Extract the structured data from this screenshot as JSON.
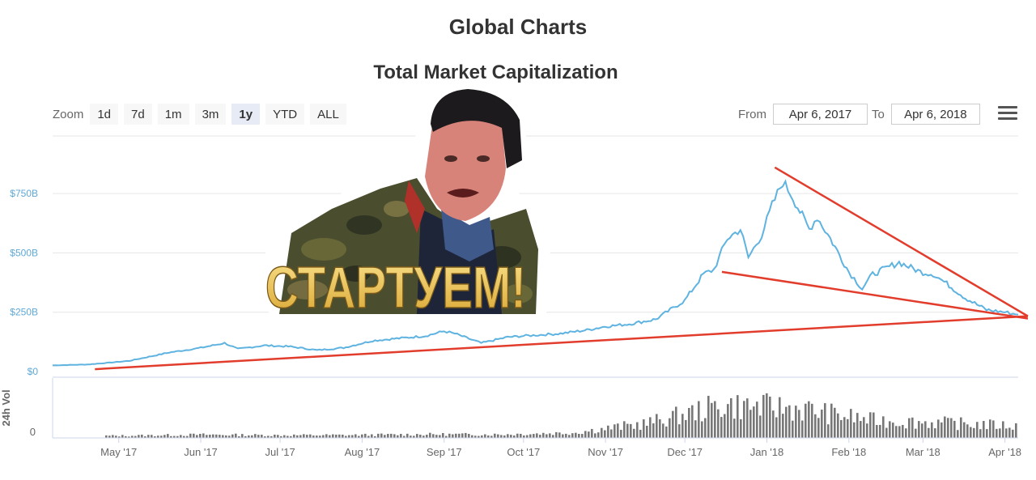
{
  "page": {
    "title": "Global Charts"
  },
  "toolbar": {
    "zoom_label": "Zoom",
    "zoom_buttons": [
      "1d",
      "7d",
      "1m",
      "3m",
      "1y",
      "YTD",
      "ALL"
    ],
    "active_zoom": "1y",
    "from_label": "From",
    "from_value": "Apr 6, 2017",
    "to_label": "To",
    "to_value": "Apr 6, 2018",
    "menu_icon": "hamburger-menu-icon"
  },
  "sticker": {
    "caption": "СТАРТУЕМ!",
    "caption_colors": [
      "#f8e08a",
      "#d9a531"
    ]
  },
  "chart_data": {
    "type": "line",
    "title": "Total Market Capitalization",
    "x_tick_labels": [
      "May '17",
      "Jun '17",
      "Jul '17",
      "Aug '17",
      "Sep '17",
      "Oct '17",
      "Nov '17",
      "Dec '17",
      "Jan '18",
      "Feb '18",
      "Mar '18",
      "Apr '18"
    ],
    "y_tick_labels": [
      "$0",
      "$250B",
      "$500B",
      "$750B"
    ],
    "y_ticks": [
      0,
      250,
      500,
      750
    ],
    "ylim": [
      0,
      850
    ],
    "line_color": "#5fb3e0",
    "series": [
      {
        "unit": "billion USD",
        "x": [
          "2017-04-06",
          "2017-04-20",
          "2017-05-05",
          "2017-05-20",
          "2017-06-01",
          "2017-06-10",
          "2017-06-15",
          "2017-06-25",
          "2017-07-05",
          "2017-07-15",
          "2017-07-25",
          "2017-08-05",
          "2017-08-15",
          "2017-08-25",
          "2017-09-01",
          "2017-09-05",
          "2017-09-15",
          "2017-09-25",
          "2017-10-01",
          "2017-10-15",
          "2017-10-25",
          "2017-11-01",
          "2017-11-10",
          "2017-11-20",
          "2017-12-01",
          "2017-12-08",
          "2017-12-12",
          "2017-12-17",
          "2017-12-22",
          "2017-12-25",
          "2017-12-30",
          "2018-01-03",
          "2018-01-07",
          "2018-01-10",
          "2018-01-17",
          "2018-01-20",
          "2018-01-25",
          "2018-02-01",
          "2018-02-06",
          "2018-02-10",
          "2018-02-20",
          "2018-02-28",
          "2018-03-05",
          "2018-03-10",
          "2018-03-17",
          "2018-03-25",
          "2018-04-01",
          "2018-04-06"
        ],
        "y": [
          26,
          30,
          45,
          80,
          100,
          120,
          95,
          110,
          105,
          90,
          100,
          130,
          140,
          150,
          170,
          160,
          120,
          145,
          150,
          160,
          175,
          190,
          200,
          220,
          300,
          410,
          430,
          560,
          600,
          480,
          575,
          700,
          800,
          750,
          600,
          650,
          560,
          420,
          350,
          410,
          460,
          420,
          410,
          370,
          310,
          260,
          250,
          240
        ]
      }
    ],
    "trend_lines": [
      {
        "color": "#e23c2c",
        "x": [
          "2017-04-22",
          "2018-04-06"
        ],
        "y": [
          10,
          240
        ]
      },
      {
        "color": "#e23c2c",
        "x": [
          "2017-12-15",
          "2018-04-06"
        ],
        "y": [
          420,
          230
        ]
      },
      {
        "color": "#e23c2c",
        "x": [
          "2018-01-04",
          "2018-04-06"
        ],
        "y": [
          860,
          240
        ]
      }
    ],
    "volume": {
      "label": "24h Vol",
      "y_tick_labels": [
        "0"
      ],
      "bar_color": "#777777",
      "monthly_avg_billion": [
        1.2,
        1.5,
        2.2,
        1.8,
        1.9,
        2.4,
        2.3,
        3.5,
        10,
        22,
        20,
        12,
        10,
        8
      ]
    }
  }
}
